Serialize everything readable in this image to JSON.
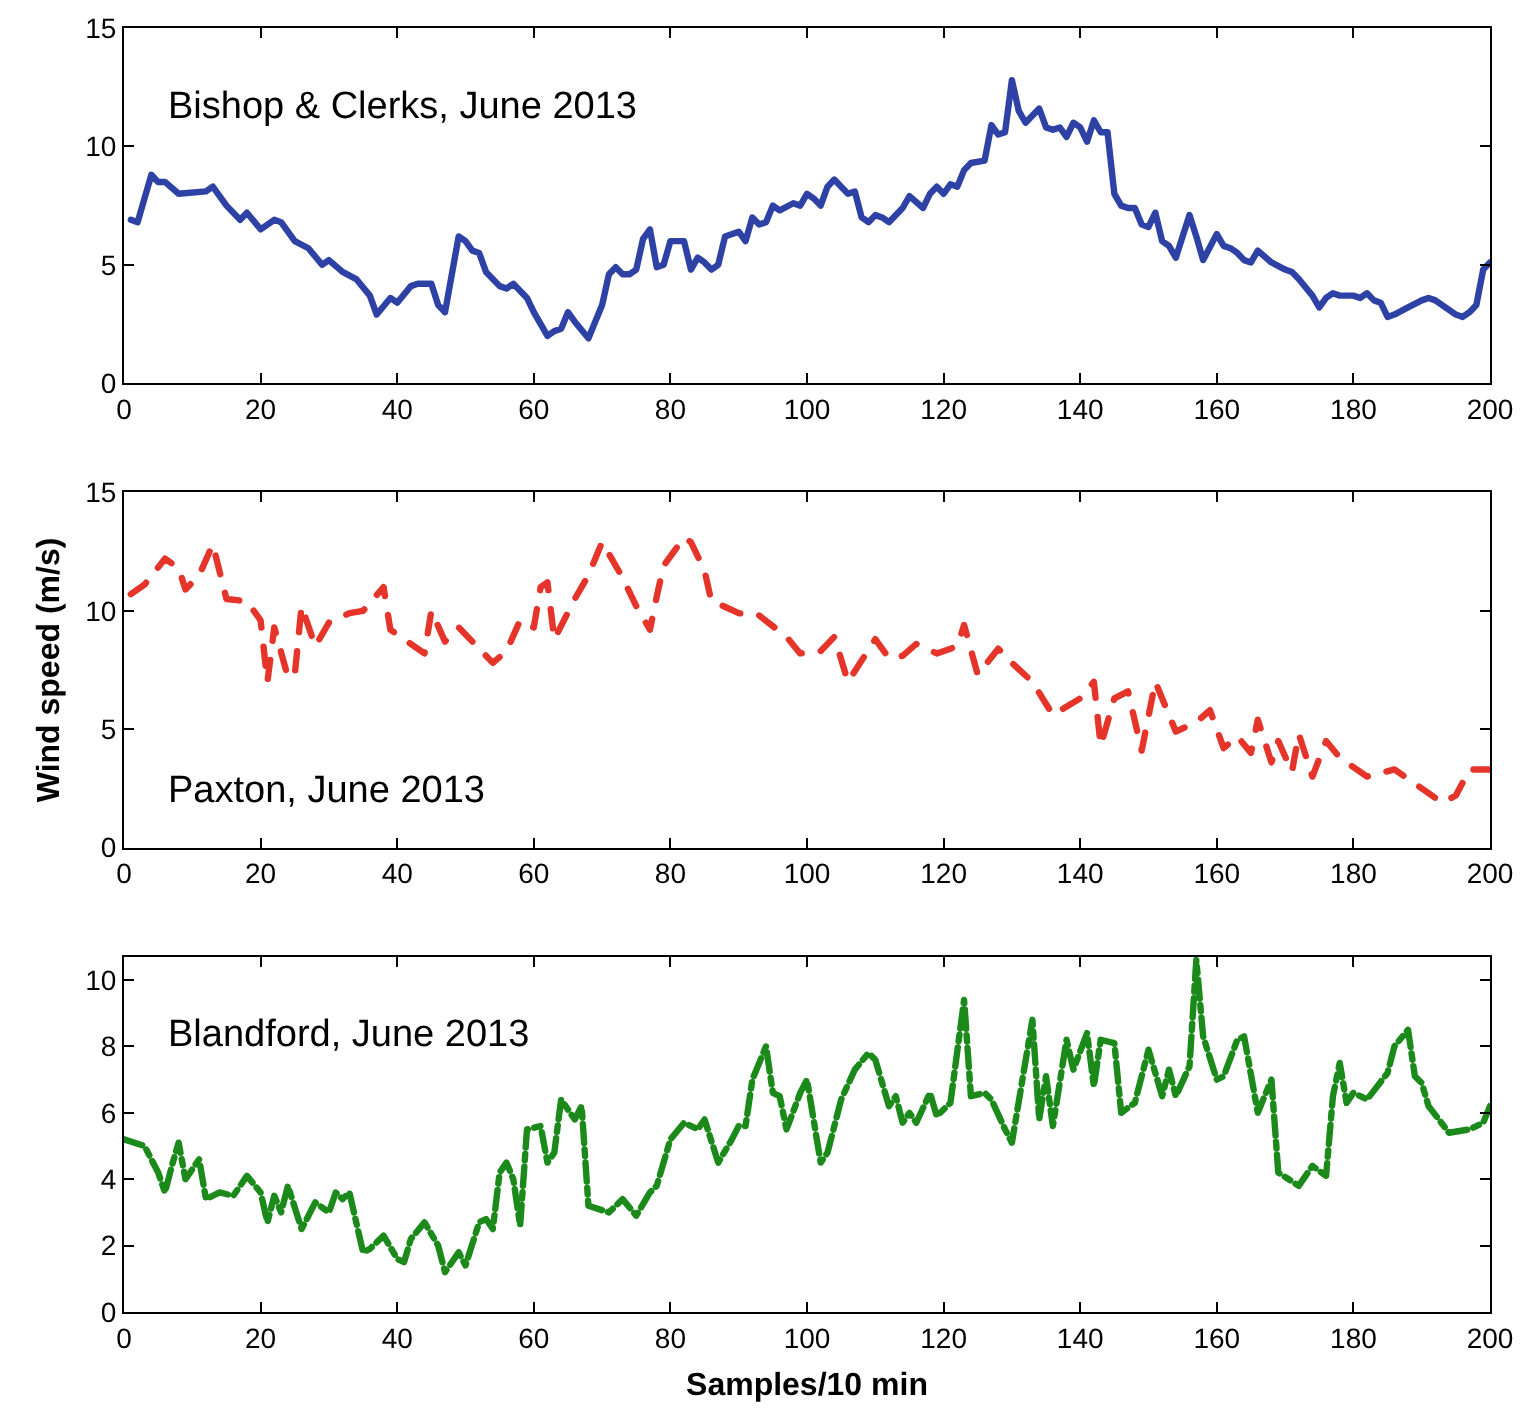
{
  "chart_data": [
    {
      "type": "line",
      "annotations": [
        "Bishop & Clerks, June 2013"
      ],
      "xlim": [
        0,
        200
      ],
      "xticks": [
        0,
        20,
        40,
        60,
        80,
        100,
        120,
        140,
        160,
        180,
        200
      ],
      "ylim": [
        0,
        15
      ],
      "yticks": [
        0,
        5,
        10,
        15
      ],
      "line_style": "solid",
      "x": [
        1,
        2,
        4,
        5,
        6,
        8,
        12,
        13,
        15,
        17,
        18,
        20,
        22,
        23,
        25,
        27,
        29,
        30,
        32,
        34,
        36,
        37,
        39,
        40,
        42,
        43,
        45,
        46,
        47,
        49,
        50,
        51,
        52,
        53,
        55,
        56,
        57,
        59,
        60,
        62,
        63,
        64,
        65,
        66,
        68,
        70,
        71,
        72,
        73,
        74,
        75,
        76,
        77,
        78,
        79,
        80,
        82,
        83,
        84,
        85,
        86,
        87,
        88,
        90,
        91,
        92,
        93,
        94,
        95,
        96,
        98,
        99,
        100,
        101,
        102,
        103,
        104,
        105,
        106,
        107,
        108,
        109,
        110,
        111,
        112,
        114,
        115,
        117,
        118,
        119,
        120,
        121,
        122,
        123,
        124,
        126,
        127,
        128,
        129,
        130,
        131,
        132,
        134,
        135,
        136,
        137,
        138,
        139,
        140,
        141,
        142,
        143,
        144,
        145,
        146,
        147,
        148,
        149,
        150,
        151,
        152,
        153,
        154,
        156,
        157,
        158,
        160,
        161,
        162,
        163,
        164,
        165,
        166,
        168,
        170,
        171,
        172,
        174,
        175,
        176,
        177,
        178,
        180,
        181,
        182,
        183,
        184,
        185,
        186,
        188,
        190,
        191,
        192,
        194,
        195,
        196,
        197,
        198,
        199,
        200
      ],
      "series": [
        {
          "color": "#2e42a5",
          "values": [
            6.9,
            6.8,
            8.8,
            8.5,
            8.5,
            8.0,
            8.1,
            8.3,
            7.5,
            6.9,
            7.2,
            6.5,
            6.9,
            6.8,
            6.0,
            5.7,
            5.0,
            5.2,
            4.7,
            4.4,
            3.7,
            2.9,
            3.6,
            3.4,
            4.1,
            4.2,
            4.2,
            3.3,
            3.0,
            6.2,
            6.0,
            5.6,
            5.5,
            4.7,
            4.1,
            4.0,
            4.2,
            3.6,
            3.0,
            2.0,
            2.2,
            2.3,
            3.0,
            2.6,
            1.9,
            3.3,
            4.6,
            4.9,
            4.6,
            4.6,
            4.8,
            6.1,
            6.5,
            4.9,
            5.0,
            6.0,
            6.0,
            4.8,
            5.3,
            5.1,
            4.8,
            5.0,
            6.2,
            6.4,
            6.0,
            7.0,
            6.7,
            6.8,
            7.5,
            7.3,
            7.6,
            7.5,
            8.0,
            7.8,
            7.5,
            8.3,
            8.6,
            8.3,
            8.0,
            8.1,
            7.0,
            6.8,
            7.1,
            7.0,
            6.8,
            7.4,
            7.9,
            7.4,
            8.0,
            8.3,
            8.0,
            8.4,
            8.3,
            9.0,
            9.3,
            9.4,
            10.9,
            10.5,
            10.6,
            12.8,
            11.5,
            11.0,
            11.6,
            10.8,
            10.7,
            10.8,
            10.4,
            11.0,
            10.8,
            10.2,
            11.1,
            10.6,
            10.6,
            8.0,
            7.5,
            7.4,
            7.4,
            6.7,
            6.6,
            7.2,
            6.0,
            5.8,
            5.3,
            7.1,
            6.2,
            5.2,
            6.3,
            5.8,
            5.7,
            5.5,
            5.2,
            5.1,
            5.6,
            5.1,
            4.8,
            4.7,
            4.4,
            3.7,
            3.2,
            3.6,
            3.8,
            3.7,
            3.7,
            3.6,
            3.8,
            3.5,
            3.4,
            2.8,
            2.9,
            3.2,
            3.5,
            3.6,
            3.5,
            3.1,
            2.9,
            2.8,
            3.0,
            3.3,
            4.8,
            5.1
          ]
        }
      ]
    },
    {
      "type": "line",
      "annotations": [
        "Paxton, June 2013"
      ],
      "ylabel": "Wind speed (m/s)",
      "xlim": [
        0,
        200
      ],
      "xticks": [
        0,
        20,
        40,
        60,
        80,
        100,
        120,
        140,
        160,
        180,
        200
      ],
      "ylim": [
        0,
        15
      ],
      "yticks": [
        0,
        5,
        10,
        15
      ],
      "line_style": "dashed",
      "x": [
        1,
        3,
        6,
        8,
        9,
        11,
        13,
        15,
        18,
        20,
        21,
        22,
        24,
        25,
        26,
        28,
        30,
        33,
        35,
        38,
        39,
        44,
        45,
        47,
        49,
        54,
        56,
        58,
        60,
        61,
        62,
        63,
        66,
        68,
        70,
        73,
        75,
        77,
        78,
        79,
        82,
        83,
        85,
        86,
        87,
        90,
        93,
        97,
        99,
        102,
        104,
        106,
        110,
        112,
        114,
        116,
        119,
        122,
        123,
        125,
        128,
        130,
        133,
        136,
        140,
        142,
        143,
        145,
        147,
        149,
        151,
        154,
        157,
        159,
        161,
        163,
        165,
        166,
        168,
        169,
        171,
        172,
        174,
        176,
        178,
        182,
        186,
        190,
        193,
        195,
        197,
        200
      ],
      "series": [
        {
          "color": "#e5352b",
          "values": [
            10.7,
            11.1,
            12.2,
            11.8,
            10.9,
            11.5,
            12.8,
            10.5,
            10.4,
            9.6,
            7.0,
            9.3,
            7.2,
            7.3,
            10.2,
            8.5,
            9.5,
            9.9,
            10.0,
            11.0,
            9.2,
            8.2,
            10.0,
            8.7,
            9.3,
            7.8,
            8.3,
            9.6,
            9.3,
            11.0,
            11.2,
            8.8,
            10.5,
            11.5,
            12.9,
            11.4,
            10.2,
            9.2,
            10.6,
            11.9,
            13.1,
            12.9,
            11.7,
            10.4,
            10.3,
            9.9,
            9.8,
            8.9,
            8.2,
            8.3,
            8.9,
            7.0,
            8.8,
            8.0,
            8.1,
            8.6,
            8.2,
            8.5,
            9.4,
            7.3,
            8.4,
            7.8,
            7.0,
            5.6,
            6.3,
            7.0,
            4.3,
            6.3,
            6.6,
            4.1,
            7.0,
            4.9,
            5.3,
            5.8,
            4.2,
            4.7,
            4.0,
            5.4,
            3.6,
            4.5,
            3.2,
            4.8,
            3.0,
            4.5,
            3.8,
            3.0,
            3.3,
            2.5,
            1.9,
            2.2,
            3.3,
            3.3
          ]
        }
      ]
    },
    {
      "type": "line",
      "annotations": [
        "Blandford, June 2013"
      ],
      "xlabel": "Samples/10 min",
      "xlim": [
        0,
        200
      ],
      "xticks": [
        0,
        20,
        40,
        60,
        80,
        100,
        120,
        140,
        160,
        180,
        200
      ],
      "ylim": [
        0,
        10.7
      ],
      "yticks": [
        0,
        2,
        4,
        6,
        8,
        10
      ],
      "line_style": "dashdot",
      "x": [
        0,
        3,
        5,
        6,
        7,
        8,
        9,
        11,
        12,
        14,
        16,
        18,
        20,
        21,
        22,
        23,
        24,
        26,
        28,
        30,
        31,
        32,
        33,
        35,
        36,
        38,
        40,
        41,
        42,
        44,
        46,
        47,
        49,
        50,
        52,
        53,
        54,
        55,
        56,
        57,
        58,
        59,
        61,
        62,
        63,
        64,
        66,
        67,
        68,
        71,
        73,
        75,
        77,
        78,
        80,
        82,
        84,
        85,
        87,
        89,
        90,
        91,
        92,
        94,
        95,
        96,
        97,
        99,
        100,
        102,
        103,
        105,
        107,
        109,
        110,
        112,
        113,
        114,
        115,
        116,
        118,
        119,
        121,
        123,
        124,
        126,
        127,
        129,
        130,
        133,
        134,
        135,
        136,
        138,
        139,
        141,
        142,
        143,
        145,
        146,
        148,
        150,
        152,
        153,
        154,
        156,
        157,
        158,
        160,
        161,
        163,
        164,
        166,
        168,
        169,
        172,
        174,
        176,
        177,
        178,
        179,
        180,
        182,
        185,
        186,
        188,
        189,
        190,
        191,
        194,
        197,
        199,
        200
      ],
      "series": [
        {
          "color": "#1b8a1b",
          "values": [
            5.2,
            5.0,
            4.2,
            3.6,
            4.4,
            5.1,
            4.0,
            4.6,
            3.4,
            3.6,
            3.5,
            4.1,
            3.6,
            2.7,
            3.5,
            3.0,
            3.8,
            2.5,
            3.3,
            3.0,
            3.6,
            3.4,
            3.6,
            1.8,
            1.9,
            2.3,
            1.6,
            1.5,
            2.2,
            2.7,
            2.0,
            1.2,
            1.8,
            1.4,
            2.7,
            2.8,
            2.5,
            4.2,
            4.5,
            4.0,
            2.6,
            5.5,
            5.6,
            4.5,
            4.8,
            6.4,
            5.8,
            6.2,
            3.2,
            3.0,
            3.4,
            2.9,
            3.6,
            3.8,
            5.2,
            5.7,
            5.5,
            5.8,
            4.5,
            5.2,
            5.6,
            5.6,
            7.0,
            8.0,
            6.6,
            6.5,
            5.5,
            6.6,
            7.0,
            4.5,
            4.8,
            6.4,
            7.3,
            7.8,
            7.6,
            6.2,
            6.5,
            5.7,
            6.0,
            5.7,
            6.6,
            5.9,
            6.3,
            9.4,
            6.5,
            6.6,
            6.4,
            5.5,
            5.1,
            8.8,
            5.8,
            7.1,
            5.6,
            8.2,
            7.3,
            8.4,
            6.8,
            8.2,
            8.1,
            6.0,
            6.3,
            7.9,
            6.5,
            7.3,
            6.5,
            7.4,
            10.6,
            8.3,
            7.0,
            7.1,
            8.2,
            8.3,
            6.0,
            7.0,
            4.2,
            3.8,
            4.4,
            4.1,
            6.5,
            7.5,
            6.3,
            6.6,
            6.4,
            7.2,
            8.0,
            8.5,
            7.1,
            6.9,
            6.2,
            5.4,
            5.5,
            5.7,
            6.2
          ]
        }
      ]
    }
  ]
}
